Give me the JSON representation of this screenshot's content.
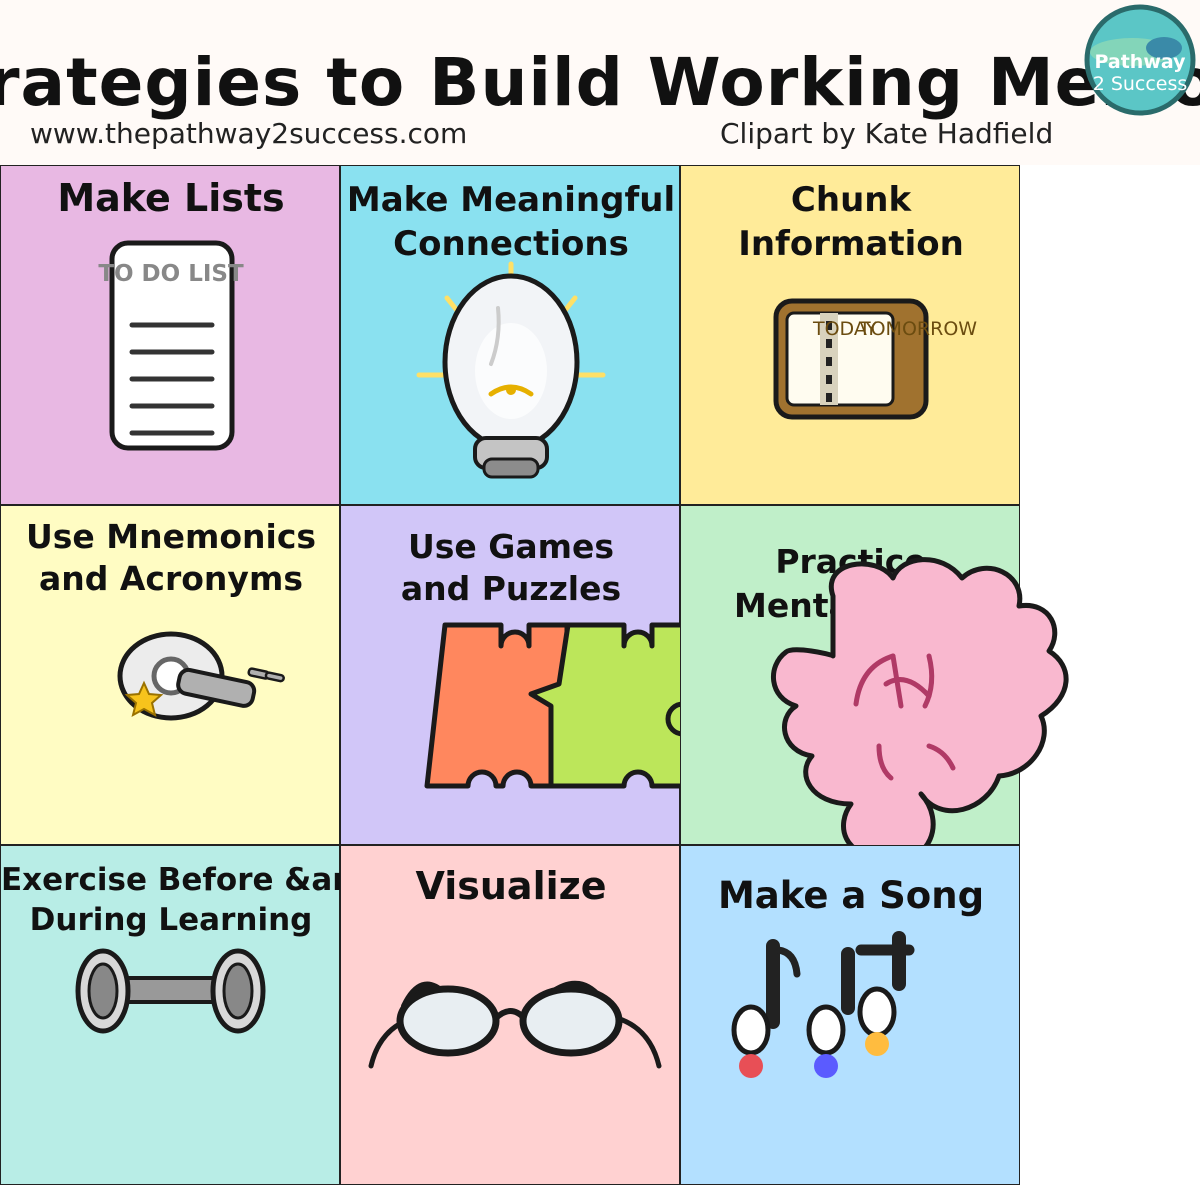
{
  "header": {
    "title": "Strategies to Build Working Memory",
    "website": "www.thepathway2success.com",
    "credit": "Clipart by Kate Hadfield",
    "logo_line1": "Pathway",
    "logo_line2": "2 Success"
  },
  "cells": [
    {
      "title_lines": [
        "Make Lists"
      ],
      "color": "#e8b8e3",
      "icon": "to-do-list-icon",
      "caption": "TO DO LIST"
    },
    {
      "title_lines": [
        "Make Meaningful",
        "Connections"
      ],
      "color": "#8ae1f0",
      "icon": "light-bulb-icon"
    },
    {
      "title_lines": [
        "Chunk",
        "Information"
      ],
      "color": "#ffeb99",
      "icon": "planner-book-icon",
      "caption_today": "TODAY",
      "caption_tomorrow": "TOMORROW"
    },
    {
      "title_lines": [
        "Use Mnemonics",
        "and Acronyms"
      ],
      "color": "#fffcc3",
      "icon": "key-ring-icon"
    },
    {
      "title_lines": [
        "Use Games",
        "and Puzzles"
      ],
      "color": "#d1c6f8",
      "icon": "puzzle-pieces-icon"
    },
    {
      "title_lines": [
        "Practice",
        "Mental Math"
      ],
      "color": "#c0efc9",
      "icon": "brain-icon"
    },
    {
      "title_lines": [
        "Exercise Before &amp;amp;",
        "During Learning"
      ],
      "color": "#b8ede6",
      "icon": "dumbbell-icon"
    },
    {
      "title_lines": [
        "Visualize"
      ],
      "color": "#ffd1d1",
      "icon": "glasses-icon"
    },
    {
      "title_lines": [
        "Make a Song"
      ],
      "color": "#b3e0ff",
      "icon": "music-notes-icon"
    }
  ]
}
